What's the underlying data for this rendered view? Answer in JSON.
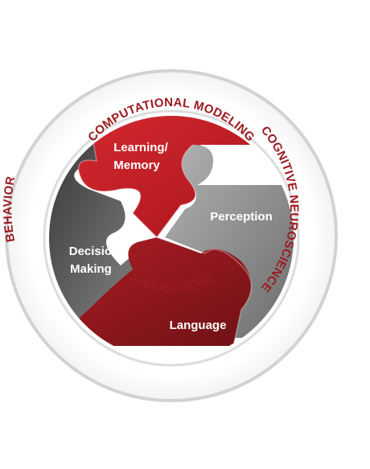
{
  "ring": {
    "top_label": "COMPUTATIONAL MODELING",
    "right_label": "COGNITIVE NEUROSCIENCE",
    "bottom_label": "APPLICATIONS",
    "left_label": "BEHAVIOR"
  },
  "pieces": {
    "learning_memory": {
      "line1": "Learning/",
      "line2": "Memory"
    },
    "perception": {
      "line1": "Perception"
    },
    "decision_making": {
      "line1": "Decision",
      "line2": "Making"
    },
    "language": {
      "line1": "Language"
    }
  },
  "colors": {
    "ring_text": "#9b1b20",
    "ring_gray": "#cfcfcf",
    "red": "#c8202a",
    "dark_red": "#8e1a1f",
    "gray": "#8a8a8a",
    "dark_gray": "#454545"
  }
}
